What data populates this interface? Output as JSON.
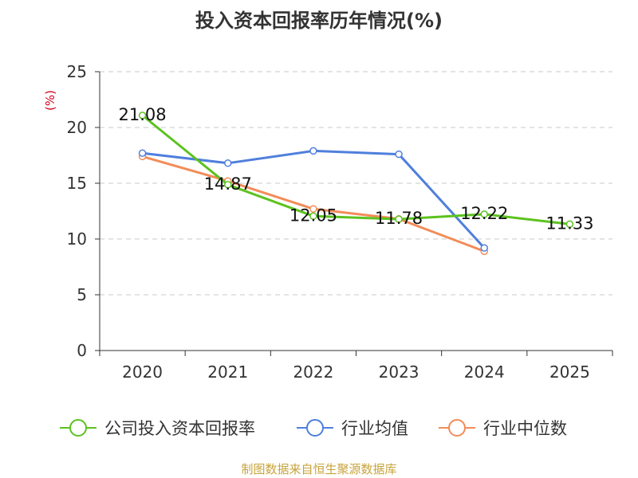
{
  "chart_data": {
    "type": "line",
    "title": "投入资本回报率历年情况(%)",
    "ylabel": "(%)",
    "xlabel": "",
    "categories": [
      "2020",
      "2021",
      "2022",
      "2023",
      "2024",
      "2025"
    ],
    "ylim": [
      0,
      25
    ],
    "yticks": [
      0,
      5,
      10,
      15,
      20,
      25
    ],
    "grid": true,
    "legend_position": "bottom",
    "series": [
      {
        "name": "公司投入资本回报率",
        "color": "#5cc21f",
        "values": [
          21.08,
          14.87,
          12.05,
          11.78,
          12.22,
          11.33
        ],
        "labels": [
          "21.08",
          "14.87",
          "12.05",
          "11.78",
          "12.22",
          "11.33"
        ]
      },
      {
        "name": "行业均值",
        "color": "#4f7fdc",
        "values": [
          17.7,
          16.8,
          17.9,
          17.6,
          9.2,
          null
        ]
      },
      {
        "name": "行业中位数",
        "color": "#f28c58",
        "values": [
          17.4,
          15.2,
          12.7,
          11.8,
          8.9,
          null
        ]
      }
    ]
  },
  "footer": {
    "source": "制图数据来自恒生聚源数据库"
  }
}
